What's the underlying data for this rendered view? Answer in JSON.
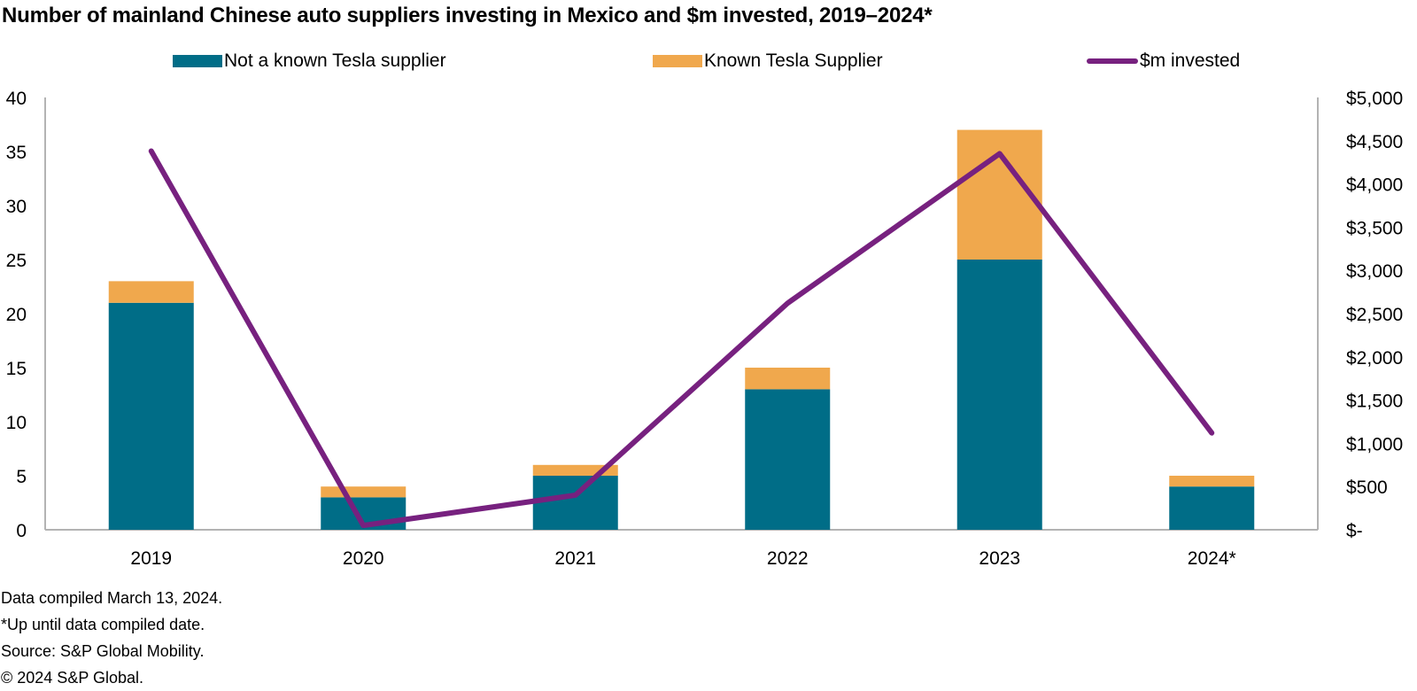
{
  "chart_data": {
    "type": "bar",
    "stacked": true,
    "title": "Number of mainland Chinese auto suppliers investing in Mexico and $m invested, 2019–2024*",
    "categories": [
      "2019",
      "2020",
      "2021",
      "2022",
      "2023",
      "2024*"
    ],
    "series": [
      {
        "name": "Not a known Tesla supplier",
        "type": "bar",
        "axis": "left",
        "color": "#006D87",
        "values": [
          21,
          3,
          5,
          13,
          25,
          4
        ]
      },
      {
        "name": "Known Tesla Supplier",
        "type": "bar",
        "axis": "left",
        "color": "#F0A84D",
        "values": [
          2,
          1,
          1,
          2,
          12,
          1
        ]
      },
      {
        "name": "$m invested",
        "type": "line",
        "axis": "right",
        "color": "#77217F",
        "values": [
          4380,
          50,
          400,
          2620,
          4350,
          1120
        ]
      }
    ],
    "left_axis": {
      "min": 0,
      "max": 40,
      "ticks": [
        0,
        5,
        10,
        15,
        20,
        25,
        30,
        35,
        40
      ],
      "tick_labels": [
        "0",
        "5",
        "10",
        "15",
        "20",
        "25",
        "30",
        "35",
        "40"
      ]
    },
    "right_axis": {
      "min": 0,
      "max": 5000,
      "ticks": [
        0,
        500,
        1000,
        1500,
        2000,
        2500,
        3000,
        3500,
        4000,
        4500,
        5000
      ],
      "tick_labels": [
        "$-",
        "$500",
        "$1,000",
        "$1,500",
        "$2,000",
        "$2,500",
        "$3,000",
        "$3,500",
        "$4,000",
        "$4,500",
        "$5,000"
      ]
    },
    "xlabel": "",
    "ylabel": "",
    "grid": false,
    "legend_position": "top"
  },
  "footnotes": [
    "Data compiled March 13, 2024.",
    "*Up until data compiled date.",
    "Source: S&P Global Mobility.",
    "© 2024 S&P Global."
  ]
}
